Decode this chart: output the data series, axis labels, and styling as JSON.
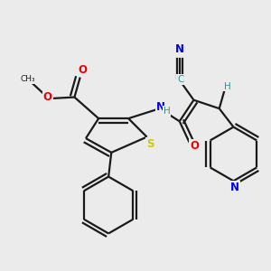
{
  "bg_color": "#ebebeb",
  "bond_color": "#1a1a1a",
  "colors": {
    "N": "#0000ee",
    "O": "#ee0000",
    "S": "#cccc00",
    "C_label": "#1a1a1a",
    "H": "#3a9090",
    "C_cyan": "#3a9090"
  }
}
